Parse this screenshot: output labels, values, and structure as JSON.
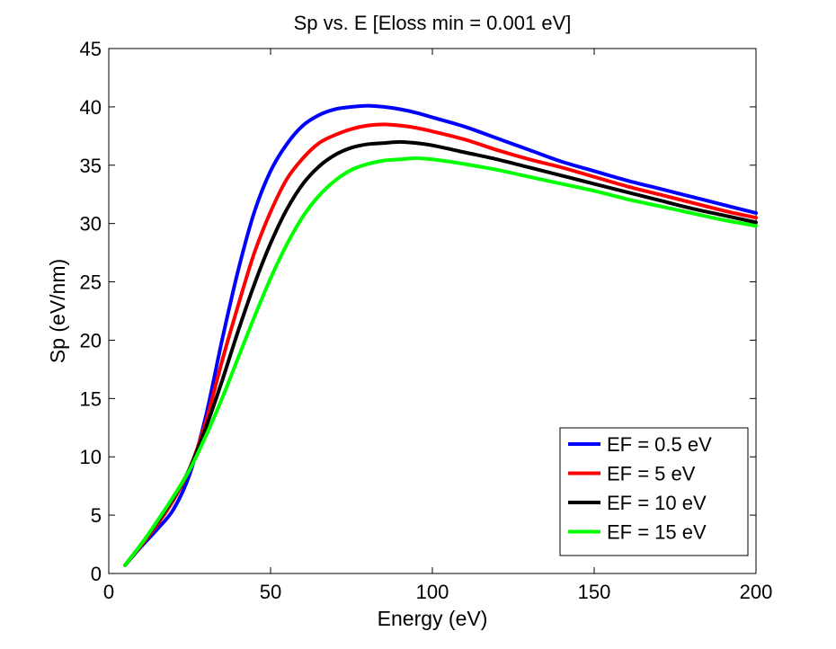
{
  "chart_data": {
    "type": "line",
    "title": "Sp vs. E [Eloss min = 0.001 eV]",
    "xlabel": "Energy (eV)",
    "ylabel": "Sp (eV/nm)",
    "xlim": [
      0,
      200
    ],
    "ylim": [
      0,
      45
    ],
    "xticks": [
      0,
      50,
      100,
      150,
      200
    ],
    "yticks": [
      0,
      5,
      10,
      15,
      20,
      25,
      30,
      35,
      40,
      45
    ],
    "xtick_labels": [
      "0",
      "50",
      "100",
      "150",
      "200"
    ],
    "ytick_labels": [
      "0",
      "5",
      "10",
      "15",
      "20",
      "25",
      "30",
      "35",
      "40",
      "45"
    ],
    "grid": false,
    "legend_position": "bottom-right",
    "series": [
      {
        "name": "EF = 0.5 eV",
        "color": "#0000ff",
        "x": [
          5,
          10,
          15,
          20,
          25,
          30,
          35,
          40,
          45,
          50,
          55,
          60,
          65,
          70,
          75,
          80,
          85,
          90,
          95,
          100,
          110,
          120,
          130,
          140,
          150,
          160,
          170,
          180,
          190,
          200
        ],
        "y": [
          0.7,
          2.3,
          3.8,
          5.5,
          8.5,
          13.5,
          20.0,
          26.0,
          31.0,
          34.5,
          36.8,
          38.4,
          39.3,
          39.8,
          40.0,
          40.1,
          40.0,
          39.8,
          39.5,
          39.1,
          38.3,
          37.3,
          36.3,
          35.3,
          34.5,
          33.7,
          33.0,
          32.3,
          31.6,
          30.9
        ]
      },
      {
        "name": "EF = 5 eV",
        "color": "#ff0000",
        "x": [
          5,
          10,
          15,
          20,
          25,
          30,
          35,
          40,
          45,
          50,
          55,
          60,
          65,
          70,
          75,
          80,
          85,
          90,
          95,
          100,
          110,
          120,
          130,
          140,
          150,
          160,
          170,
          180,
          190,
          200
        ],
        "y": [
          0.7,
          2.4,
          4.2,
          6.3,
          9.0,
          13.0,
          18.2,
          23.0,
          27.5,
          31.0,
          33.8,
          35.6,
          36.9,
          37.6,
          38.1,
          38.4,
          38.5,
          38.4,
          38.2,
          37.9,
          37.2,
          36.3,
          35.5,
          34.8,
          34.0,
          33.2,
          32.5,
          31.8,
          31.1,
          30.5
        ]
      },
      {
        "name": "EF = 10 eV",
        "color": "#000000",
        "x": [
          5,
          10,
          15,
          20,
          25,
          30,
          35,
          40,
          45,
          50,
          55,
          60,
          65,
          70,
          75,
          80,
          85,
          90,
          95,
          100,
          110,
          120,
          130,
          140,
          150,
          160,
          170,
          180,
          190,
          200
        ],
        "y": [
          0.7,
          2.5,
          4.4,
          6.5,
          9.0,
          12.5,
          16.5,
          20.8,
          24.8,
          28.3,
          31.2,
          33.4,
          34.9,
          35.9,
          36.5,
          36.8,
          36.9,
          37.0,
          36.9,
          36.7,
          36.1,
          35.5,
          34.8,
          34.1,
          33.4,
          32.7,
          32.0,
          31.3,
          30.7,
          30.1
        ]
      },
      {
        "name": "EF = 15 eV",
        "color": "#00ff00",
        "x": [
          5,
          10,
          15,
          20,
          25,
          30,
          35,
          40,
          45,
          50,
          55,
          60,
          65,
          70,
          75,
          80,
          85,
          90,
          95,
          100,
          110,
          120,
          130,
          140,
          150,
          160,
          170,
          180,
          190,
          200
        ],
        "y": [
          0.7,
          2.5,
          4.5,
          6.6,
          8.9,
          11.8,
          15.0,
          18.5,
          22.0,
          25.3,
          28.2,
          30.6,
          32.4,
          33.7,
          34.6,
          35.1,
          35.4,
          35.5,
          35.6,
          35.5,
          35.1,
          34.6,
          34.0,
          33.4,
          32.8,
          32.1,
          31.5,
          30.9,
          30.3,
          29.8
        ]
      }
    ]
  }
}
